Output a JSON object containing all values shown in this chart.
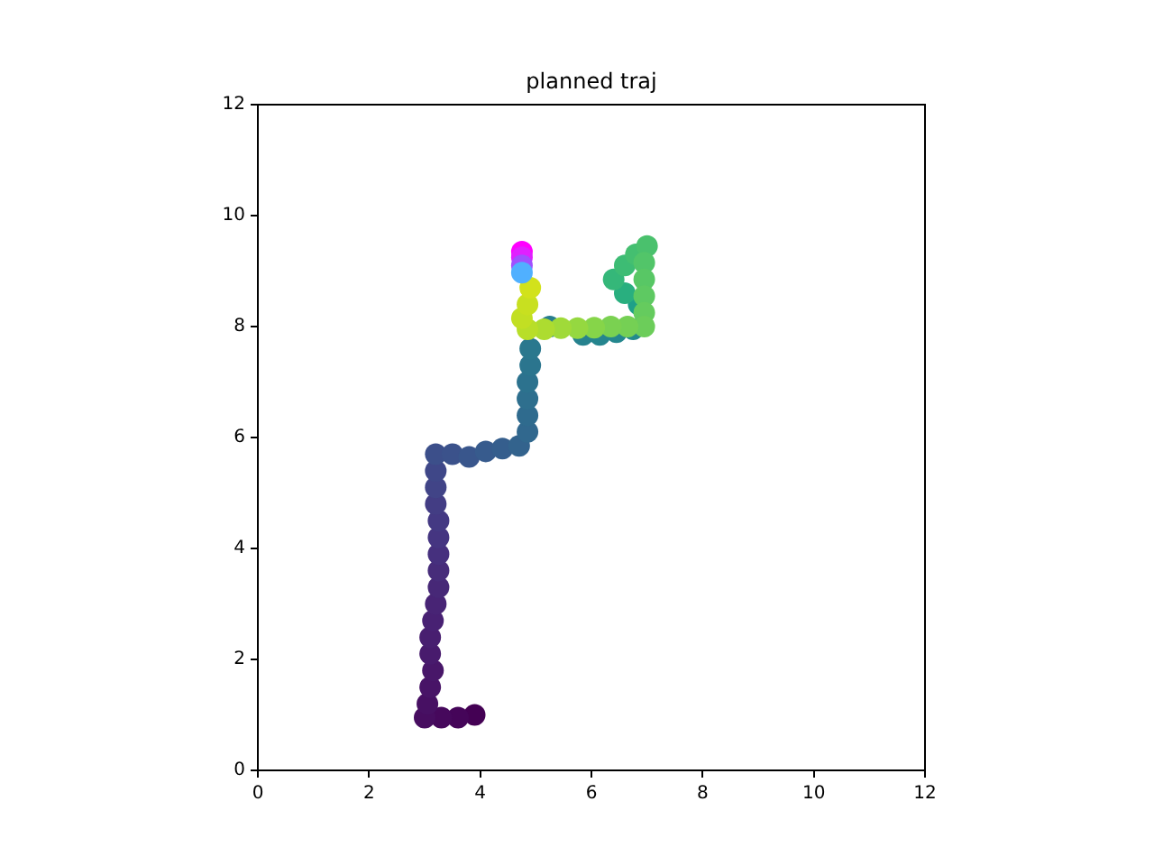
{
  "chart_data": {
    "type": "scatter",
    "title": "planned traj",
    "marker": "circle",
    "xlim": [
      0,
      12
    ],
    "ylim": [
      0,
      12
    ],
    "xticks": [
      0,
      2,
      4,
      6,
      8,
      10,
      12
    ],
    "yticks": [
      0,
      2,
      4,
      6,
      8,
      10,
      12
    ],
    "x": [
      3.9,
      3.6,
      3.3,
      3.0,
      3.05,
      3.1,
      3.15,
      3.1,
      3.1,
      3.15,
      3.2,
      3.25,
      3.25,
      3.25,
      3.25,
      3.25,
      3.2,
      3.2,
      3.2,
      3.2,
      3.5,
      3.8,
      4.1,
      4.4,
      4.7,
      4.85,
      4.85,
      4.85,
      4.85,
      4.9,
      4.9,
      5.25,
      5.85,
      6.15,
      6.45,
      6.75,
      6.85,
      6.6,
      6.4,
      6.6,
      6.8,
      7.0,
      6.95,
      6.95,
      6.95,
      6.95,
      6.95,
      6.65,
      6.35,
      6.05,
      5.75,
      5.45,
      5.15,
      4.85,
      4.75,
      4.85,
      4.9,
      4.75,
      4.75,
      4.75,
      4.75
    ],
    "values": [
      1.0,
      0.95,
      0.95,
      0.95,
      1.2,
      1.5,
      1.8,
      2.1,
      2.4,
      2.7,
      3.0,
      3.3,
      3.6,
      3.9,
      4.2,
      4.5,
      4.8,
      5.1,
      5.4,
      5.7,
      5.7,
      5.65,
      5.75,
      5.8,
      5.85,
      6.1,
      6.4,
      6.7,
      7.0,
      7.3,
      7.6,
      8.0,
      7.85,
      7.85,
      7.9,
      7.95,
      8.4,
      8.6,
      8.85,
      9.1,
      9.3,
      9.45,
      9.15,
      8.85,
      8.55,
      8.25,
      8.0,
      8.0,
      8.0,
      7.98,
      7.97,
      7.97,
      7.95,
      7.95,
      8.15,
      8.4,
      8.7,
      9.35,
      9.25,
      9.1,
      8.97
    ],
    "colors": [
      "#440154",
      "#450559",
      "#46085c",
      "#470d60",
      "#471063",
      "#481467",
      "#481769",
      "#481b6d",
      "#481f70",
      "#482173",
      "#482475",
      "#472877",
      "#472c7a",
      "#46307e",
      "#453581",
      "#443983",
      "#433d84",
      "#414487",
      "#3f4788",
      "#3c4f8a",
      "#3b528b",
      "#39568c",
      "#375b8d",
      "#355e8d",
      "#33638d",
      "#31688e",
      "#2f6b8e",
      "#2e6f8e",
      "#2c728e",
      "#2b758e",
      "#2a788e",
      "#287d8e",
      "#26828e",
      "#25858e",
      "#24878e",
      "#238a8d",
      "#1fa088",
      "#29af7f",
      "#35b779",
      "#3dbc74",
      "#44bf70",
      "#4ac16d",
      "#52c569",
      "#58c765",
      "#5ec962",
      "#65cb5e",
      "#6ccd5a",
      "#75d054",
      "#7ad151",
      "#86d549",
      "#95d840",
      "#a0da39",
      "#addc30",
      "#b8de29",
      "#c2df23",
      "#c8e020",
      "#d2e21b",
      "#ff00ff",
      "#e020ff",
      "#a050ff",
      "#50b0ff"
    ]
  }
}
